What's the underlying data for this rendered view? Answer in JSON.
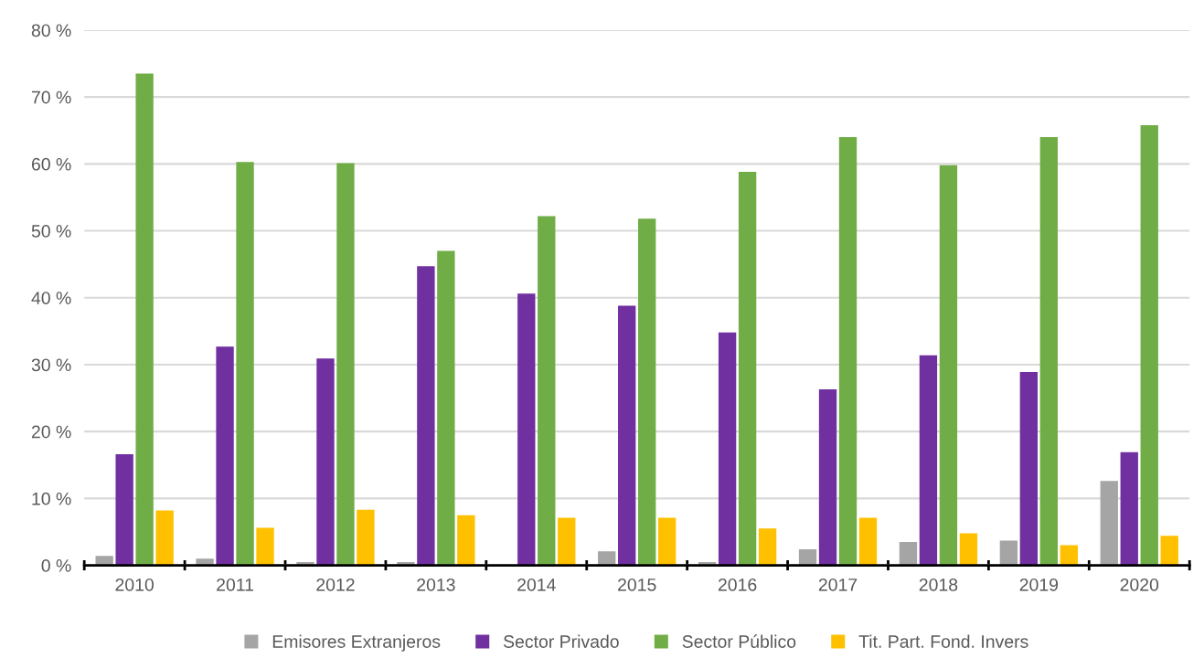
{
  "chart_data": {
    "type": "bar",
    "categories": [
      "2010",
      "2011",
      "2012",
      "2013",
      "2014",
      "2015",
      "2016",
      "2017",
      "2018",
      "2019",
      "2020"
    ],
    "series": [
      {
        "name": "Emisores Extranjeros",
        "color": "#a5a5a5",
        "values": [
          1.4,
          1.0,
          0.5,
          0.5,
          0,
          2.1,
          0.5,
          2.4,
          3.5,
          3.7,
          12.6
        ]
      },
      {
        "name": "Sector Privado",
        "color": "#7030a0",
        "values": [
          16.6,
          32.7,
          30.9,
          44.7,
          40.6,
          38.8,
          34.8,
          26.3,
          31.4,
          28.9,
          16.9
        ]
      },
      {
        "name": "Sector Público",
        "color": "#70ad47",
        "values": [
          73.5,
          60.3,
          60.1,
          47.0,
          52.2,
          51.8,
          58.8,
          64.0,
          59.8,
          64.0,
          65.8
        ]
      },
      {
        "name": "Tit. Part. Fond. Invers",
        "color": "#ffc000",
        "values": [
          8.2,
          5.6,
          8.3,
          7.5,
          7.1,
          7.1,
          5.5,
          7.1,
          4.8,
          3.0,
          4.4
        ]
      }
    ],
    "ylim": [
      0,
      80
    ],
    "yticks": [
      {
        "value": 0,
        "label": "0 %"
      },
      {
        "value": 10,
        "label": "10 %"
      },
      {
        "value": 20,
        "label": "20 %"
      },
      {
        "value": 30,
        "label": "30 %"
      },
      {
        "value": 40,
        "label": "40 %"
      },
      {
        "value": 50,
        "label": "50 %"
      },
      {
        "value": 60,
        "label": "60 %"
      },
      {
        "value": 70,
        "label": "70 %"
      },
      {
        "value": 80,
        "label": "80 %"
      }
    ],
    "grid": "y",
    "legend": "bottom"
  }
}
